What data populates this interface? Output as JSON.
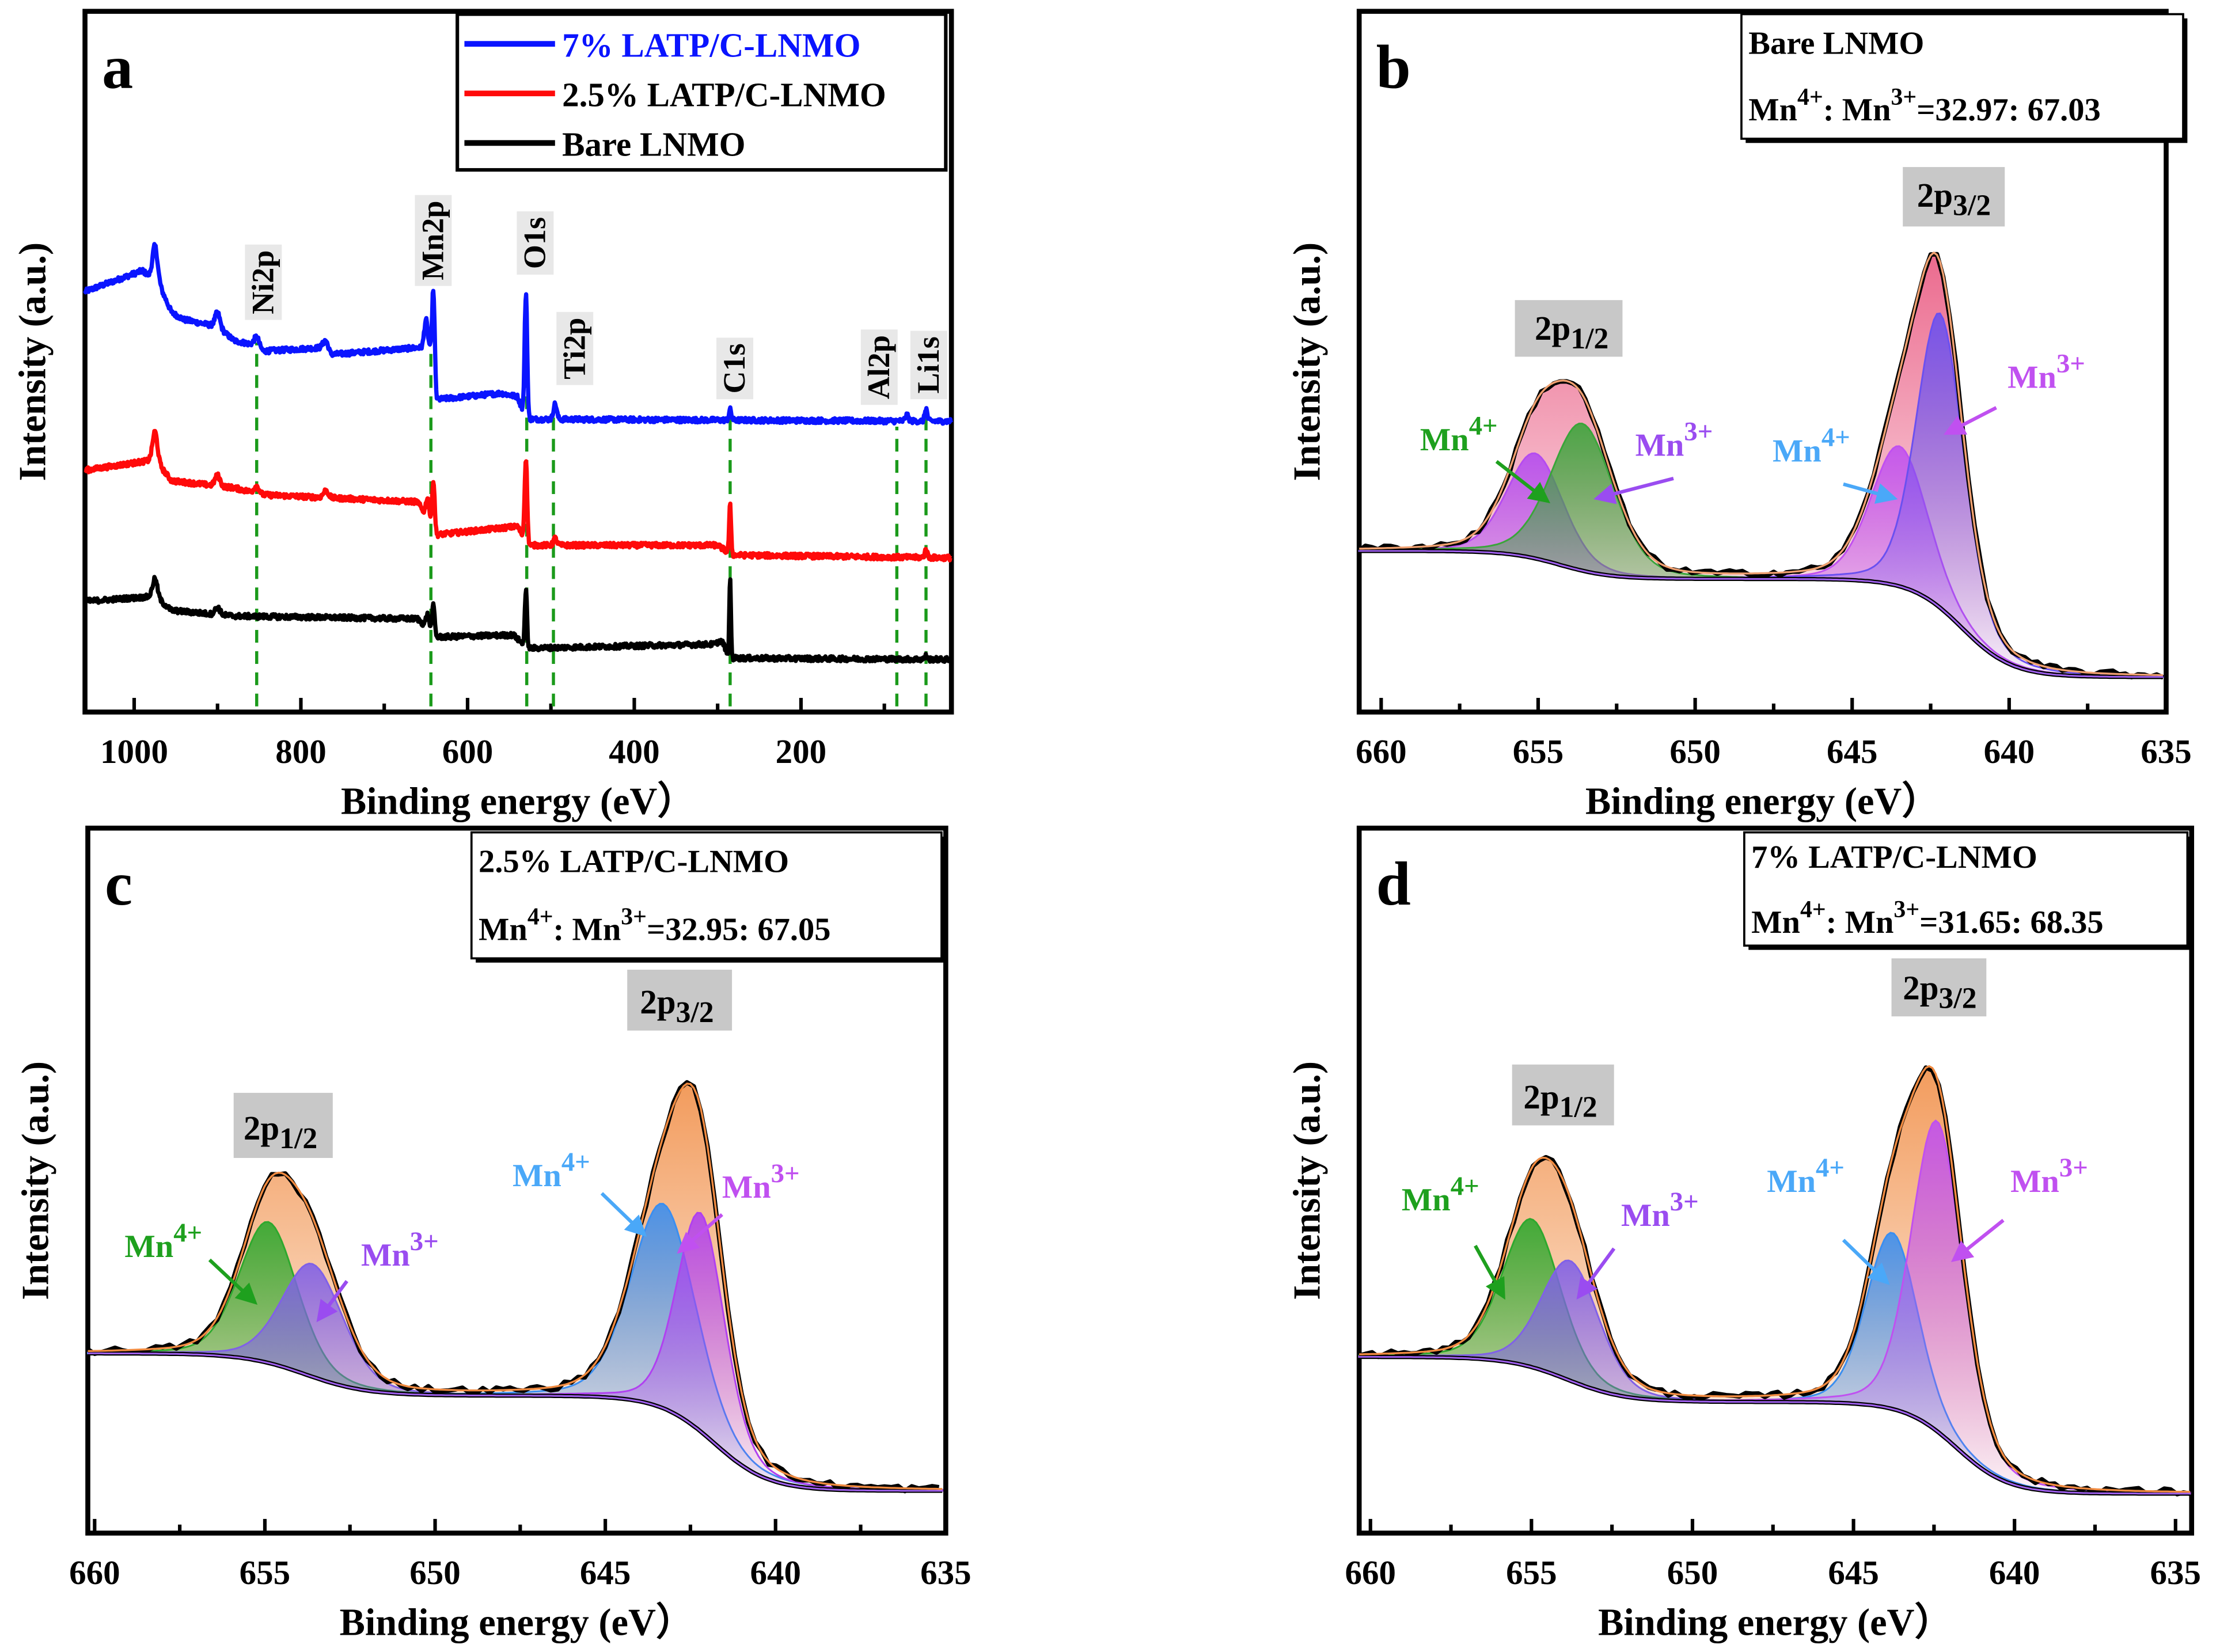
{
  "common": {
    "ion": "Mn",
    "sup4": "4+",
    "sup3": "3+"
  },
  "chart_data": [
    {
      "id": "a",
      "type": "line",
      "panel_label": "a",
      "xlabel": "Binding energy (eV）",
      "ylabel": "Intensity (a.u.)",
      "xlim": [
        1059,
        19.5
      ],
      "ylim": [
        0,
        100
      ],
      "xticks": [
        1000,
        800,
        600,
        400,
        200
      ],
      "minor_step": 100,
      "grid": false,
      "legend": {
        "placement": "top-right"
      },
      "marker_color": "#1a9a1a",
      "markers": [
        {
          "label": "Ni2p",
          "energy": 853
        },
        {
          "label": "Mn2p",
          "energy": 644
        },
        {
          "label": "O1s",
          "energy": 529
        },
        {
          "label": "Ti2p",
          "energy": 497
        },
        {
          "label": "C1s",
          "energy": 285
        },
        {
          "label": "Al2p",
          "energy": 85
        },
        {
          "label": "Li1s",
          "energy": 50
        }
      ],
      "series": [
        {
          "name": "7% LATP/C-LNMO",
          "color": "#0a14ff",
          "name_color": "#0a14ff",
          "baseline": [
            [
              1059,
              60
            ],
            [
              990,
              63
            ],
            [
              970,
              61
            ],
            [
              955,
              57
            ],
            [
              940,
              56
            ],
            [
              900,
              55
            ],
            [
              880,
              53
            ],
            [
              860,
              52.5
            ],
            [
              845,
              51.5
            ],
            [
              775,
              52
            ],
            [
              765,
              51
            ],
            [
              660,
              52
            ],
            [
              645,
              52
            ],
            [
              637,
              44.6
            ],
            [
              560,
              45.5
            ],
            [
              540,
              45
            ],
            [
              530,
              41.8
            ],
            [
              20,
              41.5
            ]
          ],
          "peaks": [
            [
              975,
              5,
              3
            ],
            [
              900,
              2,
              3
            ],
            [
              853,
              1.5,
              3
            ],
            [
              770,
              1.5,
              3
            ],
            [
              650,
              4,
              2
            ],
            [
              641,
              12,
              1.5
            ],
            [
              530,
              18,
              1.5
            ],
            [
              495,
              2.2,
              2
            ],
            [
              285,
              1.5,
              1.5
            ],
            [
              73,
              0.8,
              2
            ],
            [
              50,
              1.8,
              1.5
            ]
          ]
        },
        {
          "name": "2.5% LATP/C-LNMO",
          "color": "#ff0a0a",
          "name_color": "#000000",
          "baseline": [
            [
              1059,
              34.5
            ],
            [
              975,
              36
            ],
            [
              955,
              33
            ],
            [
              880,
              32
            ],
            [
              845,
              31
            ],
            [
              660,
              30
            ],
            [
              637,
              25.3
            ],
            [
              540,
              26.5
            ],
            [
              528,
              23.8
            ],
            [
              300,
              23.8
            ],
            [
              283,
              22.4
            ],
            [
              20,
              22
            ]
          ],
          "peaks": [
            [
              975,
              4,
              3
            ],
            [
              900,
              1.5,
              3
            ],
            [
              853,
              1,
              3
            ],
            [
              770,
              1,
              3
            ],
            [
              648,
              3,
              2
            ],
            [
              641,
              7,
              1.5
            ],
            [
              530,
              12,
              1.5
            ],
            [
              495,
              1,
              2
            ],
            [
              285,
              7,
              1.2
            ],
            [
              50,
              1.2,
              1.5
            ]
          ]
        },
        {
          "name": "Bare LNMO",
          "color": "#000000",
          "name_color": "#000000",
          "baseline": [
            [
              1059,
              15.8
            ],
            [
              975,
              16.5
            ],
            [
              955,
              14.5
            ],
            [
              880,
              13.7
            ],
            [
              660,
              13.3
            ],
            [
              637,
              10.7
            ],
            [
              545,
              11
            ],
            [
              528,
              9.1
            ],
            [
              300,
              9.7
            ],
            [
              283,
              7.7
            ],
            [
              20,
              7.5
            ]
          ],
          "peaks": [
            [
              975,
              2.5,
              3
            ],
            [
              900,
              1,
              3
            ],
            [
              648,
              2,
              2
            ],
            [
              641,
              4,
              1.5
            ],
            [
              530,
              8,
              1.3
            ],
            [
              295,
              1,
              3
            ],
            [
              285,
              11,
              1
            ],
            [
              50,
              0.5,
              1.5
            ]
          ]
        }
      ]
    },
    {
      "id": "b",
      "type": "area",
      "panel_label": "b",
      "sample": "Bare LNMO",
      "ratio_parts": [
        "Mn",
        "4+",
        ": Mn",
        "3+",
        "=32.97: 67.03"
      ],
      "xlabel": "Binding energy (eV）",
      "ylabel": "Intensity (a.u.)",
      "xlim": [
        660.7,
        635
      ],
      "ylim": [
        0,
        100
      ],
      "xticks": [
        660,
        655,
        650,
        645,
        640,
        635
      ],
      "minor_step": 2.5,
      "grid": false,
      "peak_labels": [
        {
          "main": "2p",
          "sub": "1/2"
        },
        {
          "main": "2p",
          "sub": "3/2"
        }
      ],
      "envelope_color": "#e8507a",
      "fit_line_color": "#f0a070",
      "background": {
        "low": 5,
        "steps": [
          {
            "center": 641.5,
            "height": 14,
            "width": 0.8
          },
          {
            "center": 654.3,
            "height": 4,
            "width": 0.8
          }
        ]
      },
      "components": [
        {
          "charge": "4+",
          "orbital": "2p1/2",
          "center": 655.1,
          "height": 15,
          "width": 0.9,
          "fill": "#b44cf0",
          "label_color": "#1ea01e"
        },
        {
          "charge": "3+",
          "orbital": "2p1/2",
          "center": 653.6,
          "height": 21,
          "width": 1.0,
          "fill": "#3aa53a",
          "label_color": "#9a4cf0"
        },
        {
          "charge": "4+",
          "orbital": "2p3/2",
          "center": 643.5,
          "height": 20,
          "width": 0.9,
          "fill": "#c050f0",
          "label_color": "#4aa8f8"
        },
        {
          "charge": "3+",
          "orbital": "2p3/2",
          "center": 642.2,
          "height": 42,
          "width": 0.75,
          "fill": "#6a50f0",
          "label_color": "#c050f0"
        }
      ]
    },
    {
      "id": "c",
      "type": "area",
      "panel_label": "c",
      "sample": "2.5%  LATP/C-LNMO",
      "ratio_parts": [
        "Mn",
        "4+",
        ": Mn",
        "3+",
        "=32.95: 67.05"
      ],
      "xlabel": "Binding energy (eV）",
      "ylabel": "Intensity (a.u.)",
      "xlim": [
        660.2,
        635
      ],
      "ylim": [
        0,
        100
      ],
      "xticks": [
        660,
        655,
        650,
        645,
        640,
        635
      ],
      "minor_step": 2.5,
      "grid": false,
      "peak_labels": [
        {
          "main": "2p",
          "sub": "1/2"
        },
        {
          "main": "2p",
          "sub": "3/2"
        }
      ],
      "envelope_color": "#f08a40",
      "fit_line_color": "#f08a40",
      "background": {
        "low": 6,
        "steps": [
          {
            "center": 641.8,
            "height": 13.5,
            "width": 0.8
          },
          {
            "center": 653.8,
            "height": 6,
            "width": 0.9
          }
        ]
      },
      "components": [
        {
          "charge": "4+",
          "orbital": "2p1/2",
          "center": 654.9,
          "height": 20,
          "width": 0.85,
          "fill": "#2ea82e",
          "label_color": "#1ea01e"
        },
        {
          "charge": "3+",
          "orbital": "2p1/2",
          "center": 653.6,
          "height": 16,
          "width": 0.9,
          "fill": "#8060e8",
          "label_color": "#9a4cf0"
        },
        {
          "charge": "4+",
          "orbital": "2p3/2",
          "center": 643.3,
          "height": 29,
          "width": 0.95,
          "fill": "#3a8ef0",
          "label_color": "#4aa8f8"
        },
        {
          "charge": "3+",
          "orbital": "2p3/2",
          "center": 642.2,
          "height": 31,
          "width": 0.7,
          "fill": "#b040f0",
          "label_color": "#c050f0"
        }
      ]
    },
    {
      "id": "d",
      "type": "area",
      "panel_label": "d",
      "sample": "7%  LATP/C-LNMO",
      "ratio_parts": [
        "Mn",
        "4+",
        ": Mn",
        "3+",
        "=31.65: 68.35"
      ],
      "xlabel": "Binding energy (eV）",
      "ylabel": "Intensity (a.u.)",
      "xlim": [
        660.35,
        634.5
      ],
      "ylim": [
        0,
        100
      ],
      "xticks": [
        660,
        655,
        650,
        645,
        640,
        635
      ],
      "minor_step": 2.5,
      "grid": false,
      "peak_labels": [
        {
          "main": "2p",
          "sub": "1/2"
        },
        {
          "main": "2p",
          "sub": "3/2"
        }
      ],
      "envelope_color": "#f08a40",
      "fit_line_color": "#f08a40",
      "background": {
        "low": 5.6,
        "steps": [
          {
            "center": 641.8,
            "height": 13,
            "width": 0.8
          },
          {
            "center": 653.9,
            "height": 6.4,
            "width": 0.9
          }
        ]
      },
      "components": [
        {
          "charge": "4+",
          "orbital": "2p1/2",
          "center": 655.0,
          "height": 21,
          "width": 0.9,
          "fill": "#2ea82e",
          "label_color": "#1ea01e"
        },
        {
          "charge": "3+",
          "orbital": "2p1/2",
          "center": 653.8,
          "height": 17,
          "width": 0.9,
          "fill": "#8060e8",
          "label_color": "#9a4cf0"
        },
        {
          "charge": "4+",
          "orbital": "2p3/2",
          "center": 643.8,
          "height": 25,
          "width": 0.8,
          "fill": "#3a8ef0",
          "label_color": "#4aa8f8"
        },
        {
          "charge": "3+",
          "orbital": "2p3/2",
          "center": 642.4,
          "height": 44,
          "width": 0.8,
          "fill": "#c050f0",
          "label_color": "#c050f0"
        }
      ]
    }
  ]
}
